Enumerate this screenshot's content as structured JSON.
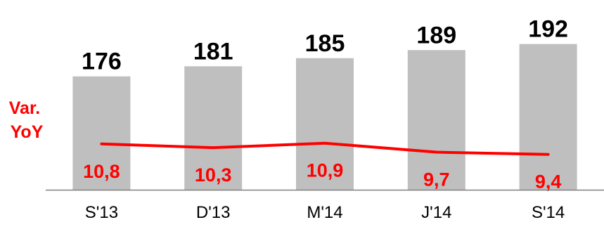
{
  "chart_data": {
    "type": "bar",
    "categories": [
      "S'13",
      "D'13",
      "M'14",
      "J'14",
      "S'14"
    ],
    "series": [
      {
        "type": "bar",
        "values": [
          176,
          181,
          185,
          189,
          192
        ],
        "color": "#bfbfbf"
      },
      {
        "name": "Var. YoY",
        "type": "line",
        "values": [
          10.8,
          10.3,
          10.9,
          9.7,
          9.4
        ],
        "labels": [
          "10,8",
          "10,3",
          "10,9",
          "9,7",
          "9,4"
        ],
        "color": "#ff0000"
      }
    ],
    "bar_labels": [
      "176",
      "181",
      "185",
      "189",
      "192"
    ],
    "side_label": {
      "line1": "Var.",
      "line2": "YoY"
    },
    "grid": false,
    "legend": "none"
  }
}
